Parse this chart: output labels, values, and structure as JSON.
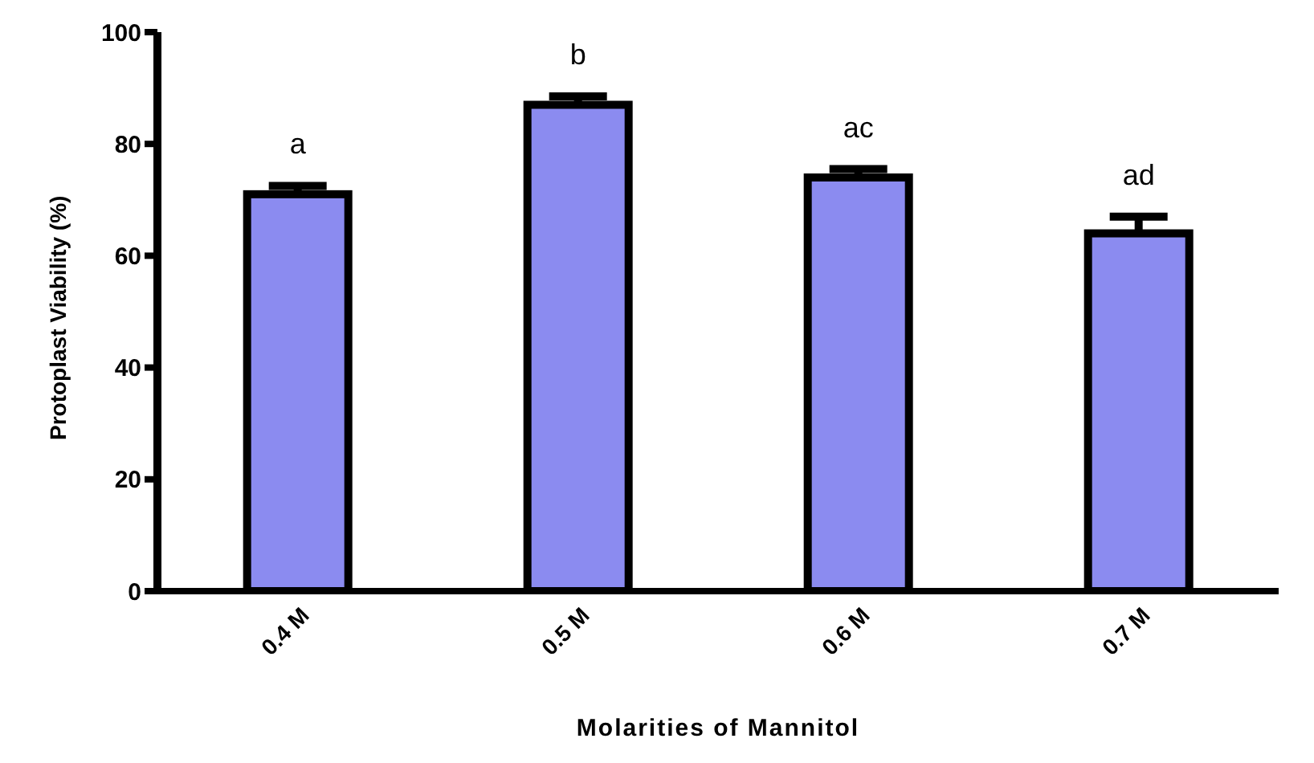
{
  "chart_data": {
    "type": "bar",
    "xlabel": "Molarities of Mannitol",
    "ylabel": "Protoplast Viability (%)",
    "categories": [
      "0.4 M",
      "0.5 M",
      "0.6 M",
      "0.7 M"
    ],
    "values": [
      71,
      87,
      74,
      64
    ],
    "errors": [
      [
        71,
        72.5
      ],
      [
        87,
        88.5
      ],
      [
        74,
        75.5
      ],
      [
        64,
        67
      ]
    ],
    "color": "#8b8bf0",
    "ylim": [
      0,
      100
    ],
    "yticks": [
      0,
      20,
      40,
      60,
      80,
      100
    ],
    "grid": false,
    "annotations": [
      "a",
      "b",
      "ac",
      "ad"
    ]
  }
}
